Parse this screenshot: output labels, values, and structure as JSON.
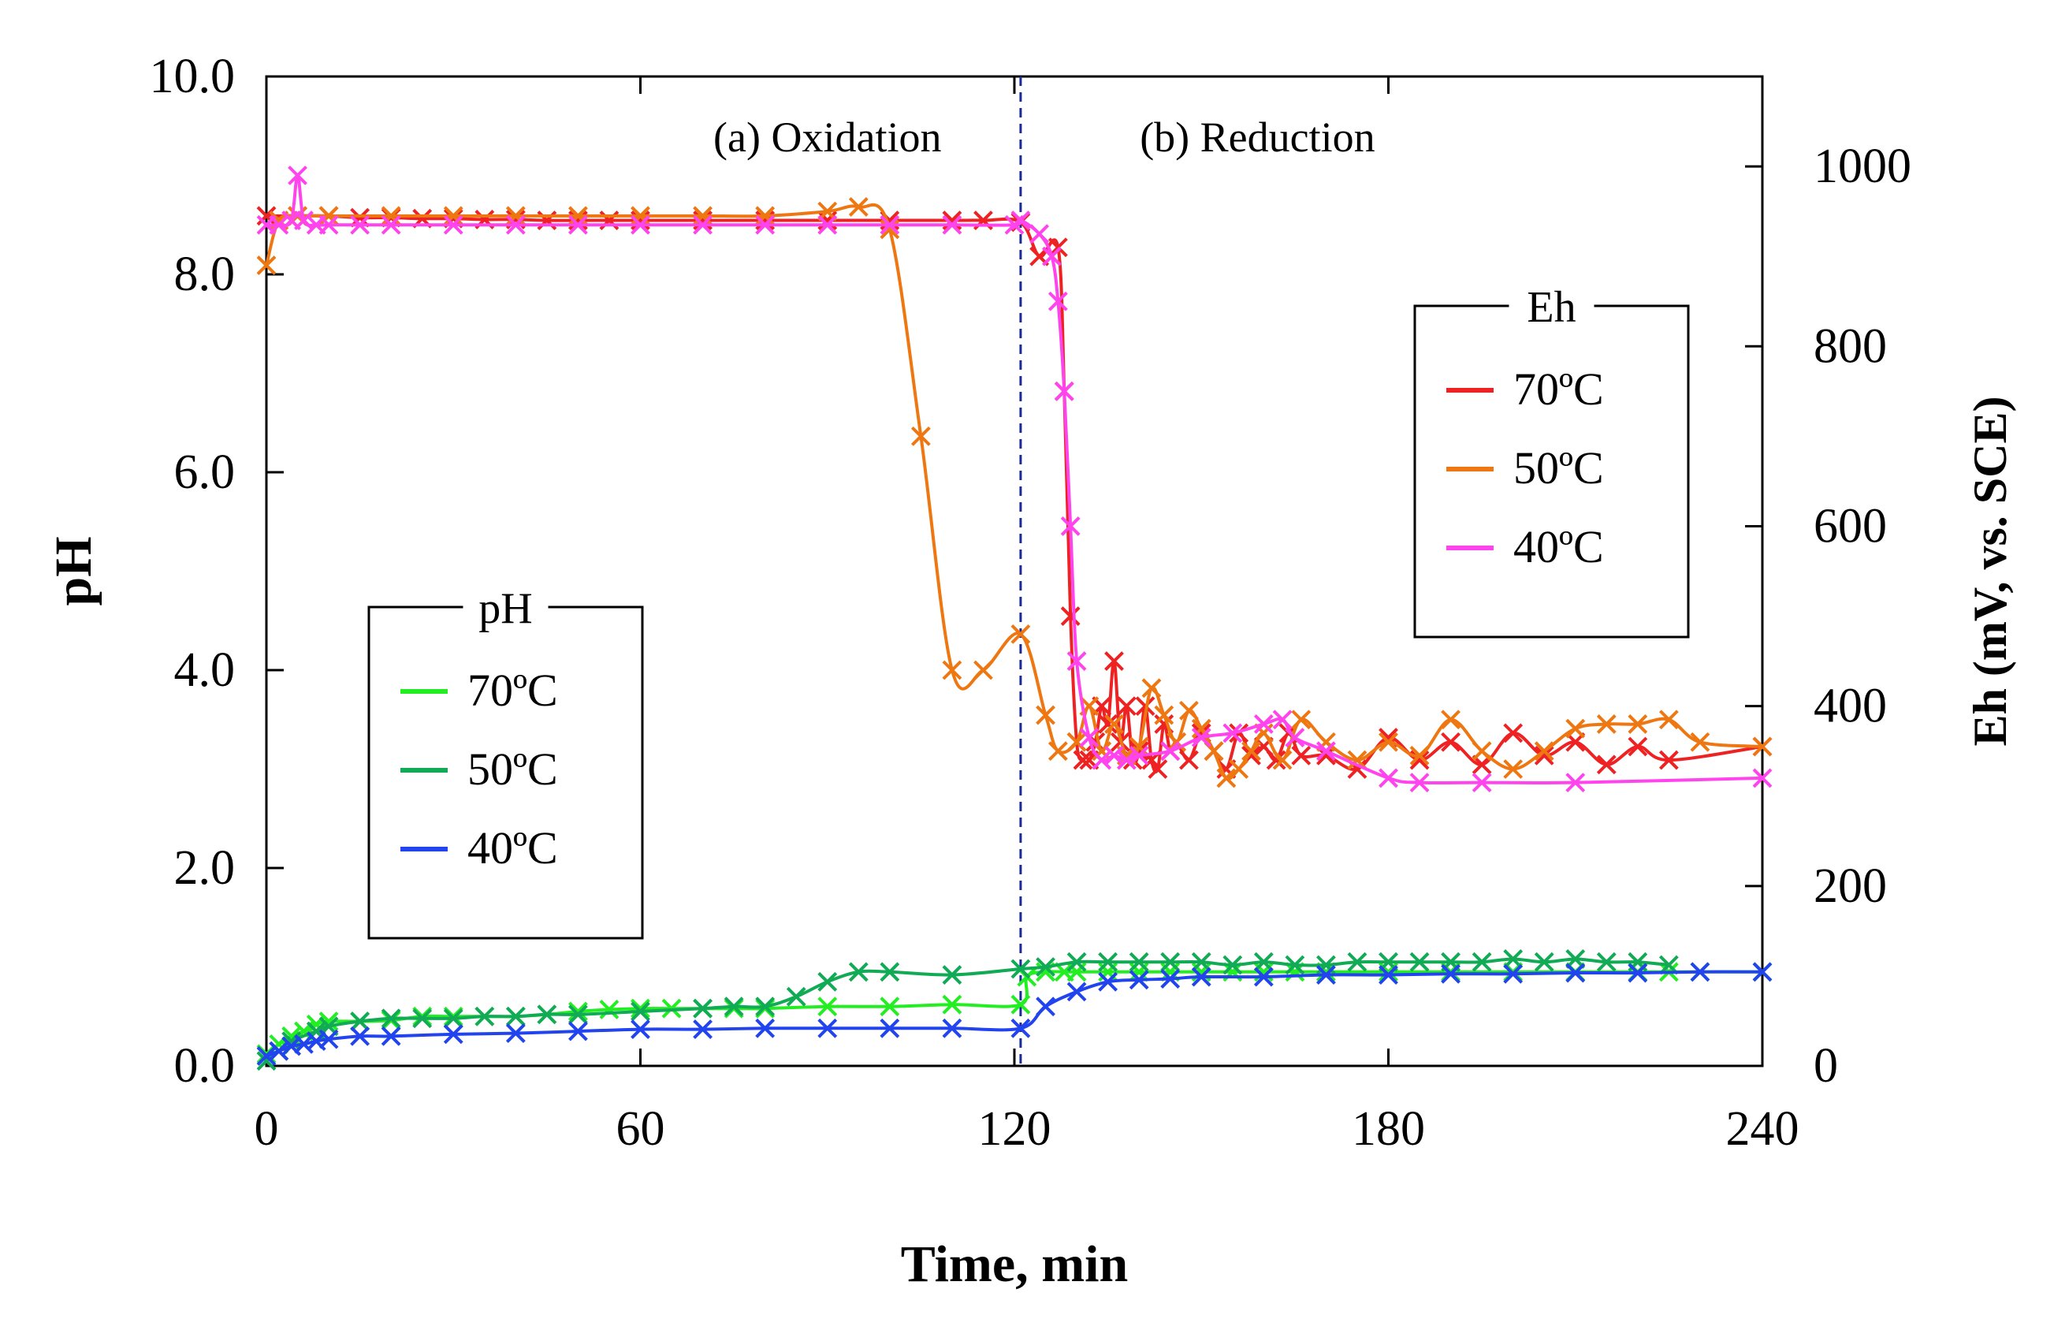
{
  "chart_data": {
    "type": "line",
    "xlabel": "Time, min",
    "ylabel_left": "pH",
    "ylabel_right": "Eh (mV, vs. SCE)",
    "xlim": [
      0,
      240
    ],
    "ylim_left": [
      0,
      10
    ],
    "ylim_right": [
      0,
      1100
    ],
    "x_ticks": [
      0,
      60,
      120,
      180,
      240
    ],
    "x_tick_labels": [
      "0",
      "60",
      "120",
      "180",
      "240"
    ],
    "yleft_ticks": [
      0,
      2,
      4,
      6,
      8,
      10
    ],
    "yleft_tick_labels": [
      "0.0",
      "2.0",
      "4.0",
      "6.0",
      "8.0",
      "10.0"
    ],
    "yright_ticks": [
      0,
      200,
      400,
      600,
      800,
      1000
    ],
    "yright_tick_labels": [
      "0",
      "200",
      "400",
      "600",
      "800",
      "1000"
    ],
    "divider_x": 121,
    "phase_labels": [
      {
        "text": "(a) Oxidation",
        "x": 90,
        "axis_y": 10.0
      },
      {
        "text": "(b) Reduction",
        "x": 159,
        "axis_y": 10.0
      }
    ],
    "legend_ph": {
      "title": "pH",
      "entries": [
        {
          "label": "70ºC",
          "color": "#22ee22"
        },
        {
          "label": "50ºC",
          "color": "#11aa55"
        },
        {
          "label": "40ºC",
          "color": "#2244ee"
        }
      ]
    },
    "legend_eh": {
      "title": "Eh",
      "entries": [
        {
          "label": "70ºC",
          "color": "#ee2222"
        },
        {
          "label": "50ºC",
          "color": "#ee7711"
        },
        {
          "label": "40ºC",
          "color": "#ff44ee"
        }
      ]
    },
    "series": [
      {
        "name": "Eh 70ºC",
        "axis": "right",
        "color": "#ee2222",
        "x": [
          0,
          5,
          10,
          15,
          20,
          25,
          30,
          35,
          40,
          45,
          50,
          55,
          60,
          70,
          80,
          90,
          100,
          110,
          115,
          121,
          124,
          127,
          128,
          129,
          130,
          131,
          132,
          133,
          134,
          135,
          136,
          137,
          138,
          139,
          140,
          141,
          142,
          143,
          144,
          145,
          146,
          148,
          150,
          152,
          154,
          156,
          158,
          160,
          162,
          164,
          166,
          170,
          175,
          180,
          185,
          190,
          195,
          200,
          205,
          210,
          215,
          220,
          225,
          240
        ],
        "y": [
          945,
          945,
          945,
          943,
          943,
          942,
          942,
          941,
          941,
          940,
          940,
          940,
          940,
          940,
          940,
          940,
          940,
          940,
          940,
          938,
          900,
          910,
          750,
          500,
          360,
          340,
          340,
          360,
          400,
          380,
          450,
          360,
          400,
          340,
          350,
          400,
          340,
          330,
          380,
          350,
          360,
          340,
          370,
          350,
          330,
          370,
          345,
          355,
          340,
          370,
          345,
          345,
          330,
          365,
          340,
          360,
          335,
          370,
          345,
          360,
          335,
          355,
          340,
          355
        ]
      },
      {
        "name": "Eh 50ºC",
        "axis": "right",
        "color": "#ee7711",
        "x": [
          0,
          2,
          5,
          10,
          20,
          30,
          40,
          50,
          60,
          70,
          80,
          90,
          95,
          100,
          105,
          110,
          115,
          121,
          125,
          127,
          130,
          132,
          134,
          136,
          138,
          140,
          142,
          144,
          146,
          148,
          150,
          152,
          154,
          156,
          158,
          160,
          163,
          166,
          170,
          175,
          180,
          185,
          190,
          195,
          200,
          205,
          210,
          215,
          220,
          225,
          230,
          240
        ],
        "y": [
          890,
          940,
          945,
          945,
          945,
          945,
          945,
          945,
          945,
          945,
          945,
          950,
          955,
          930,
          700,
          440,
          440,
          480,
          390,
          350,
          360,
          400,
          350,
          380,
          345,
          355,
          420,
          390,
          360,
          395,
          375,
          350,
          320,
          330,
          350,
          370,
          340,
          385,
          360,
          340,
          360,
          345,
          385,
          350,
          330,
          350,
          375,
          380,
          380,
          385,
          360,
          355
        ]
      },
      {
        "name": "Eh 40ºC",
        "axis": "right",
        "color": "#ff44ee",
        "x": [
          0,
          2,
          4,
          5,
          6,
          8,
          10,
          15,
          20,
          30,
          40,
          50,
          60,
          70,
          80,
          90,
          100,
          110,
          120,
          121,
          124,
          126,
          127,
          128,
          129,
          130,
          132,
          134,
          136,
          138,
          140,
          145,
          150,
          155,
          160,
          163,
          165,
          170,
          180,
          185,
          195,
          210,
          240
        ],
        "y": [
          935,
          935,
          940,
          990,
          940,
          935,
          935,
          935,
          935,
          935,
          935,
          935,
          935,
          935,
          935,
          935,
          935,
          935,
          935,
          940,
          925,
          900,
          850,
          750,
          600,
          450,
          365,
          340,
          345,
          340,
          345,
          350,
          365,
          370,
          380,
          385,
          365,
          350,
          320,
          315,
          315,
          315,
          320
        ]
      },
      {
        "name": "pH 70ºC",
        "axis": "left",
        "color": "#22ee22",
        "x": [
          0,
          2,
          4,
          6,
          8,
          10,
          15,
          20,
          25,
          30,
          35,
          40,
          45,
          50,
          55,
          60,
          65,
          70,
          75,
          80,
          90,
          100,
          110,
          121,
          122,
          125,
          128,
          130,
          135,
          140,
          145,
          150,
          155,
          160,
          165,
          170,
          180,
          190,
          200,
          210,
          220,
          225,
          230,
          240
        ],
        "y": [
          0.12,
          0.22,
          0.3,
          0.35,
          0.42,
          0.45,
          0.45,
          0.46,
          0.5,
          0.5,
          0.5,
          0.5,
          0.52,
          0.55,
          0.57,
          0.58,
          0.58,
          0.58,
          0.58,
          0.58,
          0.6,
          0.6,
          0.62,
          0.62,
          0.9,
          0.95,
          0.95,
          0.95,
          0.95,
          0.95,
          0.95,
          0.95,
          0.95,
          0.95,
          0.95,
          0.95,
          0.95,
          0.95,
          0.95,
          0.95,
          0.95,
          0.95,
          0.95,
          0.95
        ]
      },
      {
        "name": "pH 50ºC",
        "axis": "left",
        "color": "#11aa55",
        "x": [
          0,
          2,
          4,
          8,
          10,
          15,
          20,
          25,
          30,
          35,
          40,
          45,
          50,
          60,
          70,
          75,
          80,
          85,
          90,
          95,
          100,
          110,
          121,
          125,
          130,
          135,
          140,
          145,
          150,
          155,
          160,
          165,
          170,
          175,
          180,
          185,
          190,
          195,
          200,
          205,
          210,
          215,
          220,
          225
        ],
        "y": [
          0.05,
          0.15,
          0.25,
          0.35,
          0.4,
          0.45,
          0.48,
          0.48,
          0.48,
          0.5,
          0.5,
          0.52,
          0.52,
          0.55,
          0.58,
          0.6,
          0.6,
          0.7,
          0.85,
          0.95,
          0.95,
          0.92,
          0.98,
          1.0,
          1.05,
          1.05,
          1.05,
          1.05,
          1.05,
          1.02,
          1.05,
          1.02,
          1.02,
          1.05,
          1.05,
          1.05,
          1.05,
          1.05,
          1.08,
          1.05,
          1.08,
          1.05,
          1.05,
          1.02
        ]
      },
      {
        "name": "pH 40ºC",
        "axis": "left",
        "color": "#2244ee",
        "x": [
          0,
          2,
          4,
          6,
          8,
          10,
          15,
          20,
          30,
          40,
          50,
          60,
          70,
          80,
          90,
          100,
          110,
          121,
          125,
          130,
          135,
          140,
          145,
          150,
          160,
          170,
          180,
          190,
          200,
          210,
          220,
          230,
          240
        ],
        "y": [
          0.1,
          0.15,
          0.2,
          0.22,
          0.25,
          0.27,
          0.3,
          0.3,
          0.32,
          0.33,
          0.35,
          0.37,
          0.37,
          0.38,
          0.38,
          0.38,
          0.38,
          0.38,
          0.6,
          0.75,
          0.85,
          0.87,
          0.88,
          0.9,
          0.9,
          0.92,
          0.92,
          0.93,
          0.93,
          0.94,
          0.94,
          0.95,
          0.95
        ]
      }
    ]
  }
}
